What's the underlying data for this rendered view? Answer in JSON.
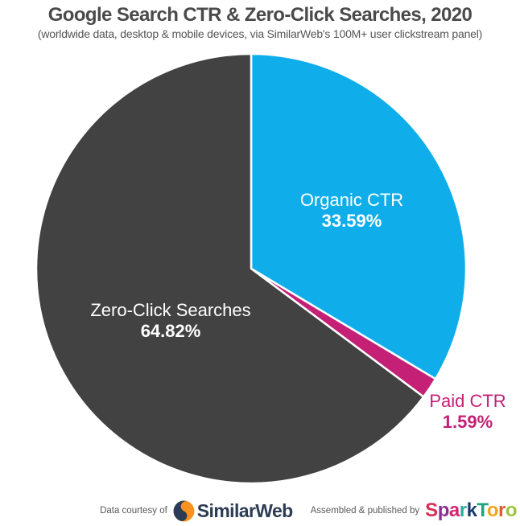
{
  "header": {
    "title": "Google Search CTR & Zero-Click Searches, 2020",
    "subtitle": "(worldwide data, desktop & mobile devices, via SimilarWeb's 100M+ user clickstream panel)"
  },
  "chart_data": {
    "type": "pie",
    "title": "Google Search CTR & Zero-Click Searches, 2020",
    "unit": "%",
    "direction": "clockwise",
    "start_angle": "top",
    "slice_gap_color": "#FFFFFF",
    "slices": [
      {
        "label": "Organic CTR",
        "value": 33.59,
        "display": "33.59%",
        "color": "#0FAEEA",
        "text_color": "#FFFFFF",
        "label_position": "inside"
      },
      {
        "label": "Paid CTR",
        "value": 1.59,
        "display": "1.59%",
        "color": "#C32076",
        "text_color": "#C32076",
        "label_position": "outside"
      },
      {
        "label": "Zero-Click Searches",
        "value": 64.82,
        "display": "64.82%",
        "color": "#424242",
        "text_color": "#FFFFFF",
        "label_position": "inside"
      }
    ]
  },
  "footer": {
    "left_caption": "Data courtesy of",
    "similarweb_brand": "SimilarWeb",
    "similarweb_colors": {
      "navy": "#2B3C54",
      "orange": "#F7931E"
    },
    "right_caption": "Assembled & published by",
    "sparktoro_brand": "SparkToro",
    "sparktoro_letters": [
      {
        "char": "S",
        "color": "#D92F55"
      },
      {
        "char": "p",
        "color": "#8A2F8F"
      },
      {
        "char": "a",
        "color": "#D6246E"
      },
      {
        "char": "r",
        "color": "#2FA8A0"
      },
      {
        "char": "k",
        "color": "#1E3D6E"
      },
      {
        "char": "T",
        "color": "#1EA382"
      },
      {
        "char": "o",
        "color": "#F2A51E"
      },
      {
        "char": "r",
        "color": "#E05A2B"
      },
      {
        "char": "o",
        "color": "#9BC53D"
      }
    ]
  }
}
